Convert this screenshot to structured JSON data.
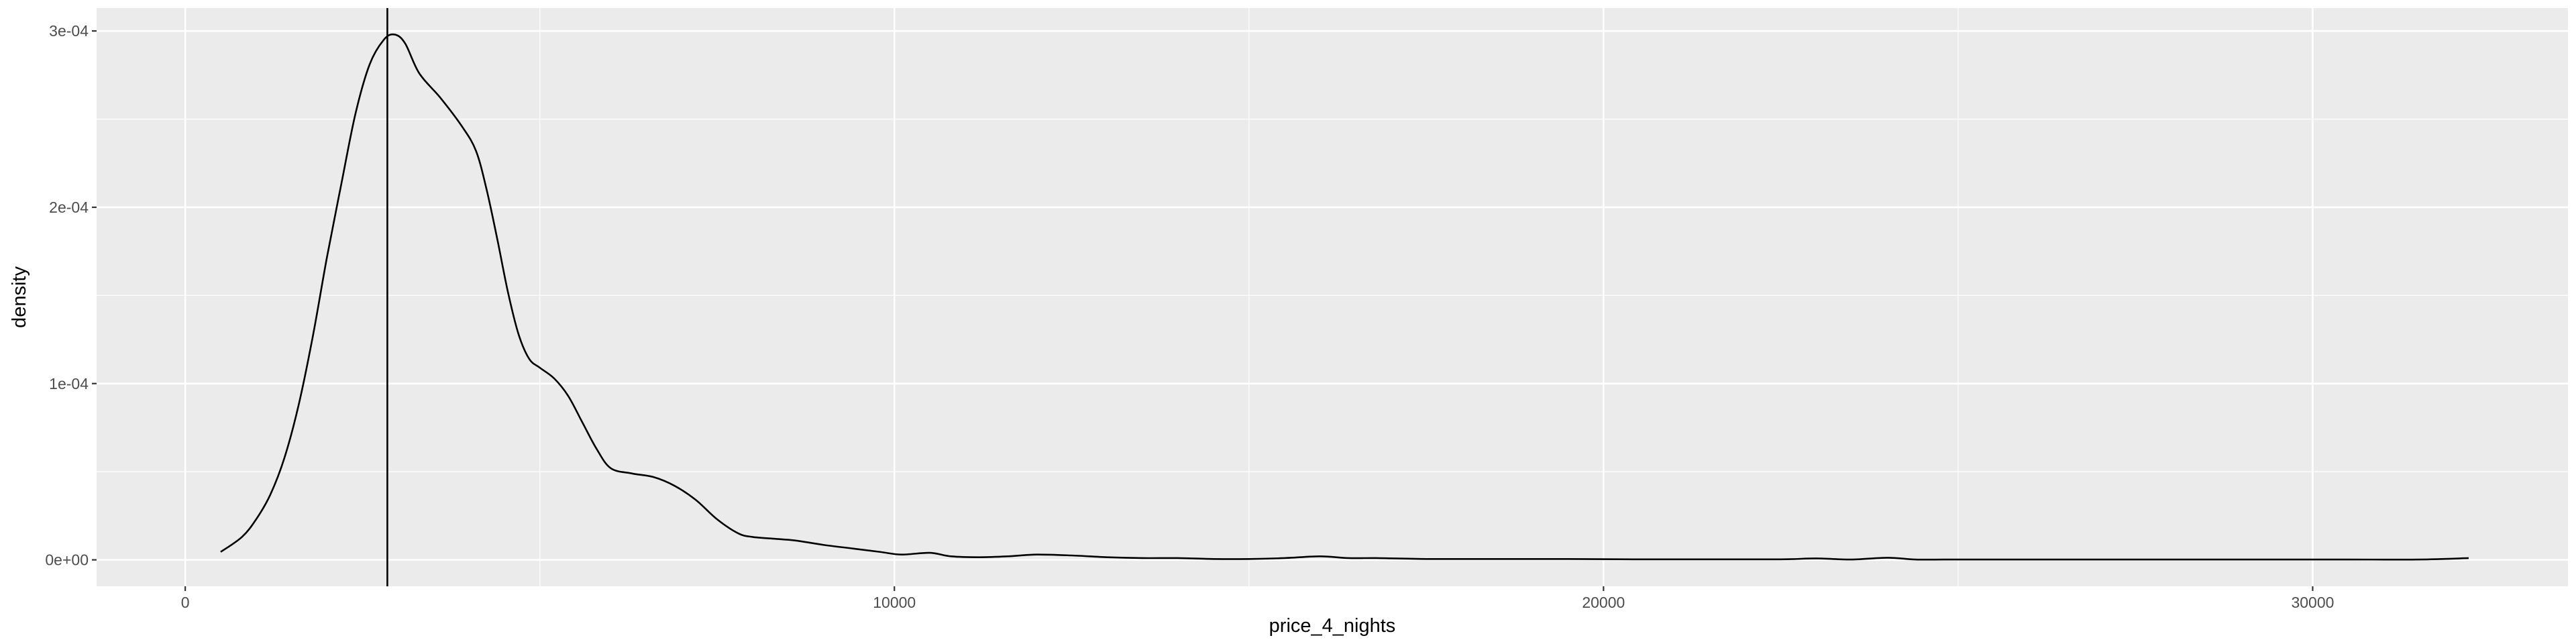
{
  "chart_data": {
    "type": "line",
    "title": "",
    "xlabel": "price_4_nights",
    "ylabel": "density",
    "xlim": [
      -1250,
      33600
    ],
    "ylim": [
      -1.5e-05,
      0.000313
    ],
    "x_ticks": [
      {
        "value": 0,
        "label": "0"
      },
      {
        "value": 10000,
        "label": "10000"
      },
      {
        "value": 20000,
        "label": "20000"
      },
      {
        "value": 30000,
        "label": "30000"
      }
    ],
    "y_ticks": [
      {
        "value": 0,
        "label": "0e+00"
      },
      {
        "value": 0.0001,
        "label": "1e-04"
      },
      {
        "value": 0.0002,
        "label": "2e-04"
      },
      {
        "value": 0.0003,
        "label": "3e-04"
      }
    ],
    "x_minor": [
      5000,
      15000,
      25000
    ],
    "y_minor": [
      5e-05,
      0.00015,
      0.00025
    ],
    "grid": true,
    "background": "#EBEBEB",
    "line_color": "#000000",
    "vline": {
      "x": 2850
    },
    "series": [
      {
        "x": [
          500,
          800,
          1000,
          1200,
          1400,
          1600,
          1800,
          2000,
          2200,
          2400,
          2600,
          2800,
          2950,
          3100,
          3300,
          3600,
          3900,
          4100,
          4250,
          4400,
          4550,
          4700,
          4850,
          5000,
          5200,
          5400,
          5600,
          5800,
          6000,
          6300,
          6600,
          6900,
          7200,
          7500,
          7800,
          8000,
          8300,
          8600,
          9000,
          9400,
          9800,
          10100,
          10500,
          10800,
          11200,
          11600,
          12000,
          12500,
          13000,
          13500,
          14000,
          14500,
          15000,
          15500,
          16000,
          16400,
          16800,
          17500,
          18500,
          19500,
          20500,
          21500,
          22500,
          23000,
          23500,
          24000,
          24400,
          24800,
          25500,
          26500,
          27500,
          28500,
          29500,
          30500,
          31500,
          32200
        ],
        "values": [
          4.5e-06,
          1.3e-05,
          2.3e-05,
          3.7e-05,
          5.8e-05,
          8.8e-05,
          0.000127,
          0.000172,
          0.000213,
          0.000253,
          0.000281,
          0.000295,
          0.000298,
          0.000293,
          0.000276,
          0.000262,
          0.000246,
          0.000232,
          0.00021,
          0.000182,
          0.000152,
          0.000128,
          0.000114,
          0.000109,
          0.000103,
          9.3e-05,
          7.8e-05,
          6.3e-05,
          5.2e-05,
          4.9e-05,
          4.7e-05,
          4.2e-05,
          3.4e-05,
          2.3e-05,
          1.5e-05,
          1.3e-05,
          1.2e-05,
          1.1e-05,
          8.5e-06,
          6.5e-06,
          4.5e-06,
          3e-06,
          4e-06,
          2e-06,
          1.5e-06,
          2e-06,
          3e-06,
          2.5e-06,
          1.5e-06,
          1e-06,
          1e-06,
          5e-07,
          5e-07,
          1e-06,
          2e-06,
          1e-06,
          1e-06,
          5e-07,
          5e-07,
          5e-07,
          3e-07,
          3e-07,
          3e-07,
          8e-07,
          2e-07,
          1.2e-06,
          2e-07,
          2e-07,
          2e-07,
          2e-07,
          2e-07,
          2e-07,
          2e-07,
          2e-07,
          2e-07,
          1e-06
        ]
      }
    ]
  }
}
